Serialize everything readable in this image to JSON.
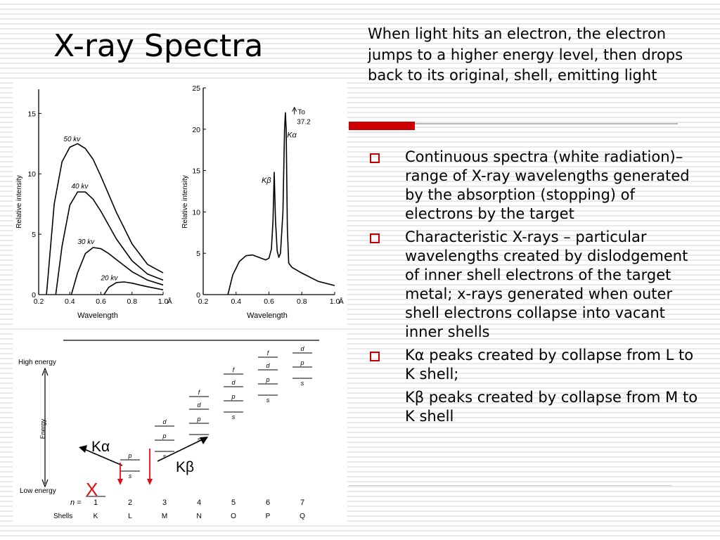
{
  "slide": {
    "title": "X-ray Spectra",
    "intro": "When light hits an electron, the electron jumps to a higher energy level, then drops back to its original, shell,  emitting light",
    "bullets": [
      "Continuous spectra (white radiation)– range of X-ray wavelengths generated by the absorption (stopping) of electrons by the target",
      "Characteristic X-rays – particular wavelengths created by dislodgement of inner shell electrons of the target metal; x-rays generated when outer shell electrons collapse into vacant inner shells",
      "Kα peaks created by collapse from L to K shell;"
    ],
    "sub_bullet": "Kβ peaks created by collapse from M to K shell",
    "accent_color": "#cc0000"
  },
  "chart_data": [
    {
      "type": "line",
      "title": "",
      "xlabel": "Wavelength",
      "ylabel": "Relative intensity",
      "xlim": [
        0.2,
        1.0
      ],
      "ylim": [
        0,
        17
      ],
      "x_ticks": [
        "0.2",
        "0.4",
        "0.6",
        "0.8",
        "1.0"
      ],
      "x_unit": "Å",
      "y_ticks": [
        "0",
        "5",
        "10",
        "15"
      ],
      "series": [
        {
          "name": "50 kv",
          "x": [
            0.25,
            0.3,
            0.35,
            0.4,
            0.45,
            0.5,
            0.55,
            0.6,
            0.7,
            0.8,
            0.9,
            1.0
          ],
          "values": [
            0,
            7.5,
            11,
            12.2,
            12.5,
            12.1,
            11.2,
            9.8,
            6.8,
            4.2,
            2.5,
            1.8
          ]
        },
        {
          "name": "40 kv",
          "x": [
            0.31,
            0.35,
            0.4,
            0.45,
            0.5,
            0.55,
            0.6,
            0.7,
            0.8,
            0.9,
            1.0
          ],
          "values": [
            0,
            4,
            7.4,
            8.5,
            8.5,
            7.9,
            6.9,
            4.6,
            2.8,
            1.7,
            1.2
          ]
        },
        {
          "name": "30 kv",
          "x": [
            0.41,
            0.45,
            0.5,
            0.55,
            0.6,
            0.65,
            0.7,
            0.8,
            0.9,
            1.0
          ],
          "values": [
            0,
            1.8,
            3.4,
            3.9,
            3.8,
            3.4,
            2.9,
            1.9,
            1.2,
            0.8
          ]
        },
        {
          "name": "20 kv",
          "x": [
            0.62,
            0.65,
            0.7,
            0.75,
            0.8,
            0.85,
            0.9,
            1.0
          ],
          "values": [
            0,
            0.6,
            1,
            1.05,
            0.95,
            0.8,
            0.65,
            0.4
          ]
        }
      ]
    },
    {
      "type": "line",
      "title": "",
      "xlabel": "Wavelength",
      "ylabel": "Relative intensity",
      "xlim": [
        0.2,
        1.0
      ],
      "ylim": [
        0,
        25
      ],
      "x_ticks": [
        "0.2",
        "0.4",
        "0.6",
        "0.8",
        "1.0"
      ],
      "x_unit": "Å",
      "y_ticks": [
        "0",
        "5",
        "10",
        "15",
        "20",
        "25"
      ],
      "series": [
        {
          "name": "",
          "x": [
            0.35,
            0.38,
            0.42,
            0.46,
            0.5,
            0.54,
            0.58,
            0.6,
            0.615,
            0.625,
            0.632,
            0.64,
            0.65,
            0.66,
            0.67,
            0.685,
            0.695,
            0.7,
            0.705,
            0.712,
            0.72,
            0.74,
            0.8,
            0.9,
            1.0
          ],
          "values": [
            0,
            2.4,
            4,
            4.7,
            4.8,
            4.5,
            4.2,
            4.4,
            5.5,
            9,
            14.8,
            9,
            5.3,
            4.5,
            5,
            10,
            20,
            22,
            20,
            8,
            3.8,
            3.3,
            2.6,
            1.6,
            1.1
          ]
        }
      ],
      "annotations": [
        "Kβ",
        "Kα",
        "To",
        "37.2"
      ]
    },
    {
      "type": "diagram",
      "title": "",
      "y_axis": {
        "top_label": "High energy",
        "bottom_label": "Low energy",
        "axis_label": "Energy"
      },
      "n_label": "n =",
      "n_values": [
        "1",
        "2",
        "3",
        "4",
        "5",
        "6",
        "7"
      ],
      "shells_label": "Shells",
      "shells": [
        "K",
        "L",
        "M",
        "N",
        "O",
        "P",
        "Q"
      ],
      "subshells": [
        [
          "s"
        ],
        [
          "s",
          "p"
        ],
        [
          "s",
          "p",
          "d"
        ],
        [
          "s",
          "p",
          "d",
          "f"
        ],
        [
          "s",
          "p",
          "d",
          "f"
        ],
        [
          "s",
          "p",
          "d",
          "f"
        ],
        [
          "s",
          "p",
          "d"
        ]
      ],
      "labels": {
        "k_alpha": "Kα",
        "k_beta": "Kβ",
        "vacancy": "X"
      },
      "arrow_color": "#e01010"
    }
  ]
}
